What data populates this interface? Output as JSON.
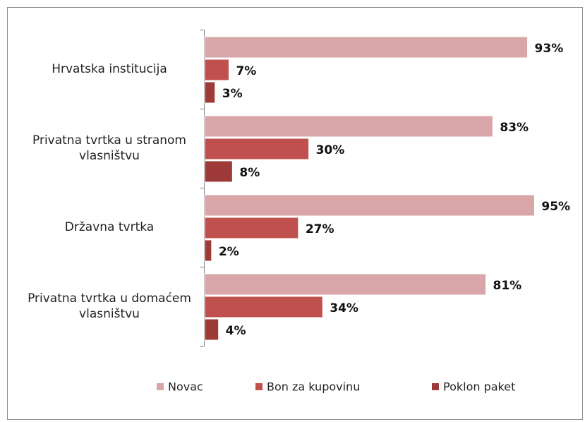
{
  "chart_data": {
    "type": "bar",
    "orientation": "horizontal",
    "categories": [
      "Hrvatska institucija",
      "Privatna tvrtka u stranom vlasništvu",
      "Državna tvrtka",
      "Privatna tvrtka u domaćem vlasništvu"
    ],
    "series": [
      {
        "name": "Novac",
        "color": "#d8a5a8",
        "values": [
          93,
          83,
          95,
          81
        ],
        "value_labels": [
          "93%",
          "83%",
          "95%",
          "81%"
        ]
      },
      {
        "name": "Bon za kupovinu",
        "color": "#c0504d",
        "values": [
          7,
          30,
          27,
          34
        ],
        "value_labels": [
          "7%",
          "30%",
          "27%",
          "34%"
        ]
      },
      {
        "name": "Poklon paket",
        "color": "#9e3a38",
        "values": [
          3,
          8,
          2,
          4
        ],
        "value_labels": [
          "3%",
          "8%",
          "2%",
          "4%"
        ]
      }
    ],
    "xlim": [
      0,
      100
    ],
    "legend": "bottom"
  }
}
